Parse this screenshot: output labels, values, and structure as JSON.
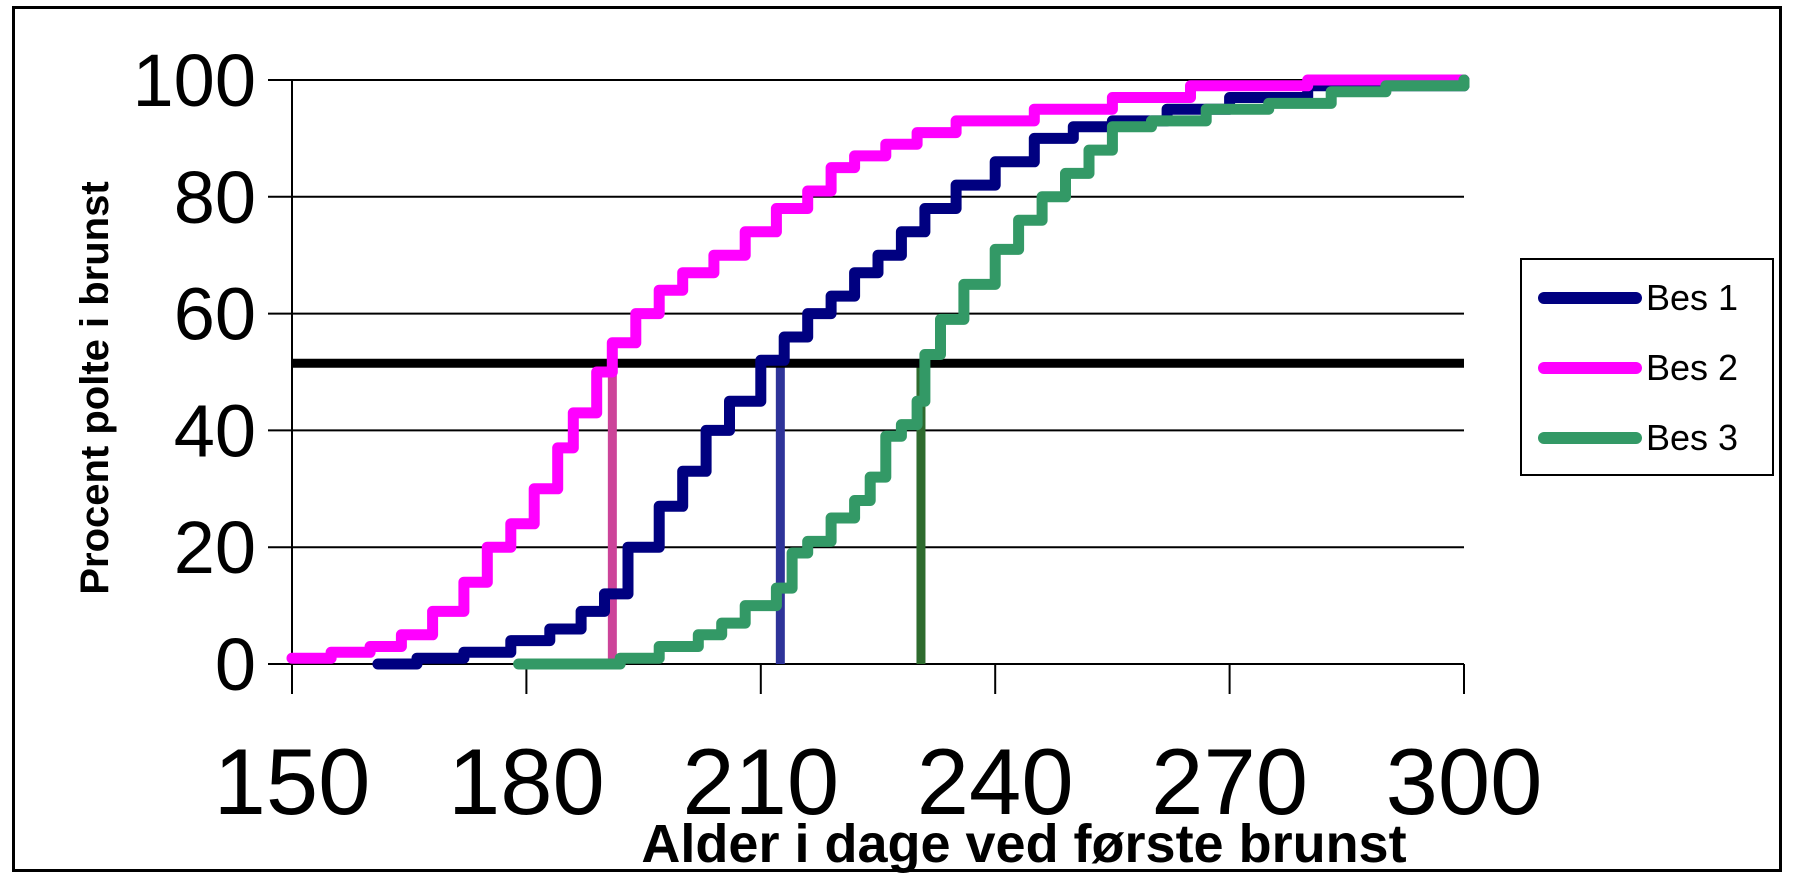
{
  "chart_data": {
    "type": "line",
    "title": "",
    "xlabel": "Alder i dage ved første brunst",
    "ylabel": "Procent polte i brunst",
    "xlim": [
      150,
      300
    ],
    "ylim": [
      0,
      100
    ],
    "x_ticks": [
      "150",
      "180",
      "210",
      "240",
      "270",
      "300"
    ],
    "y_ticks": [
      "0",
      "20",
      "40",
      "60",
      "80",
      "100"
    ],
    "grid": "horizontal",
    "legend_position": "right",
    "series": [
      {
        "name": "Bes 1",
        "color": "#000080",
        "points": [
          [
            161,
            0
          ],
          [
            166,
            1
          ],
          [
            172,
            2
          ],
          [
            178,
            4
          ],
          [
            183,
            6
          ],
          [
            187,
            9
          ],
          [
            190,
            12
          ],
          [
            193,
            20
          ],
          [
            197,
            27
          ],
          [
            200,
            33
          ],
          [
            203,
            40
          ],
          [
            206,
            45
          ],
          [
            210,
            52
          ],
          [
            213,
            56
          ],
          [
            216,
            60
          ],
          [
            219,
            63
          ],
          [
            222,
            67
          ],
          [
            225,
            70
          ],
          [
            228,
            74
          ],
          [
            231,
            78
          ],
          [
            235,
            82
          ],
          [
            240,
            86
          ],
          [
            245,
            90
          ],
          [
            250,
            92
          ],
          [
            255,
            93
          ],
          [
            262,
            95
          ],
          [
            270,
            97
          ],
          [
            280,
            99
          ],
          [
            300,
            100
          ]
        ]
      },
      {
        "name": "Bes 2",
        "color": "#FF00FF",
        "points": [
          [
            150,
            1
          ],
          [
            155,
            2
          ],
          [
            160,
            3
          ],
          [
            164,
            5
          ],
          [
            168,
            9
          ],
          [
            172,
            14
          ],
          [
            175,
            20
          ],
          [
            178,
            24
          ],
          [
            181,
            30
          ],
          [
            184,
            37
          ],
          [
            186,
            43
          ],
          [
            189,
            50
          ],
          [
            191,
            55
          ],
          [
            194,
            60
          ],
          [
            197,
            64
          ],
          [
            200,
            67
          ],
          [
            204,
            70
          ],
          [
            208,
            74
          ],
          [
            212,
            78
          ],
          [
            216,
            81
          ],
          [
            219,
            85
          ],
          [
            222,
            87
          ],
          [
            226,
            89
          ],
          [
            230,
            91
          ],
          [
            235,
            93
          ],
          [
            245,
            95
          ],
          [
            255,
            97
          ],
          [
            265,
            99
          ],
          [
            280,
            100
          ],
          [
            300,
            100
          ]
        ]
      },
      {
        "name": "Bes 3",
        "color": "#339966",
        "points": [
          [
            179,
            0
          ],
          [
            192,
            1
          ],
          [
            197,
            3
          ],
          [
            202,
            5
          ],
          [
            205,
            7
          ],
          [
            208,
            10
          ],
          [
            212,
            13
          ],
          [
            214,
            19
          ],
          [
            216,
            21
          ],
          [
            219,
            25
          ],
          [
            222,
            28
          ],
          [
            224,
            32
          ],
          [
            226,
            39
          ],
          [
            228,
            41
          ],
          [
            230,
            45
          ],
          [
            231,
            53
          ],
          [
            233,
            59
          ],
          [
            236,
            65
          ],
          [
            240,
            71
          ],
          [
            243,
            76
          ],
          [
            246,
            80
          ],
          [
            249,
            84
          ],
          [
            252,
            88
          ],
          [
            255,
            92
          ],
          [
            260,
            93
          ],
          [
            267,
            95
          ],
          [
            275,
            96
          ],
          [
            283,
            98
          ],
          [
            290,
            99
          ],
          [
            300,
            100
          ]
        ]
      }
    ],
    "reference_line": {
      "y": 51.5,
      "color": "#000000"
    },
    "median_markers": [
      {
        "x": 191,
        "y": 51.5,
        "color": "#CC4499"
      },
      {
        "x": 212.5,
        "y": 51.5,
        "color": "#2E3399"
      },
      {
        "x": 230.5,
        "y": 51.5,
        "color": "#2E6B2E"
      }
    ]
  }
}
